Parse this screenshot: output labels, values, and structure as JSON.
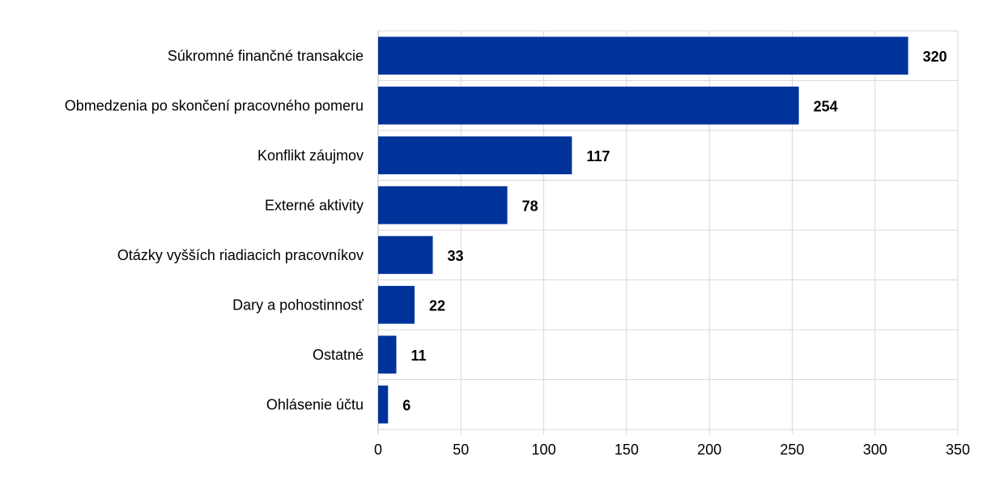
{
  "chart_data": {
    "type": "bar",
    "orientation": "horizontal",
    "title": "",
    "xlabel": "",
    "ylabel": "",
    "categories": [
      "Súkromné finančné transakcie",
      "Obmedzenia po skončení pracovného pomeru",
      "Konflikt záujmov",
      "Externé aktivity",
      "Otázky vyšších riadiacich pracovníkov",
      "Dary a pohostinnosť",
      "Ostatné",
      "Ohlásenie účtu"
    ],
    "values": [
      320,
      254,
      117,
      78,
      33,
      22,
      11,
      6
    ],
    "xlim": [
      0,
      350
    ],
    "xticks": [
      0,
      50,
      100,
      150,
      200,
      250,
      300,
      350
    ],
    "grid": true,
    "data_labels": true,
    "bar_color": "#00339a",
    "grid_color": "#d9d9d9"
  }
}
